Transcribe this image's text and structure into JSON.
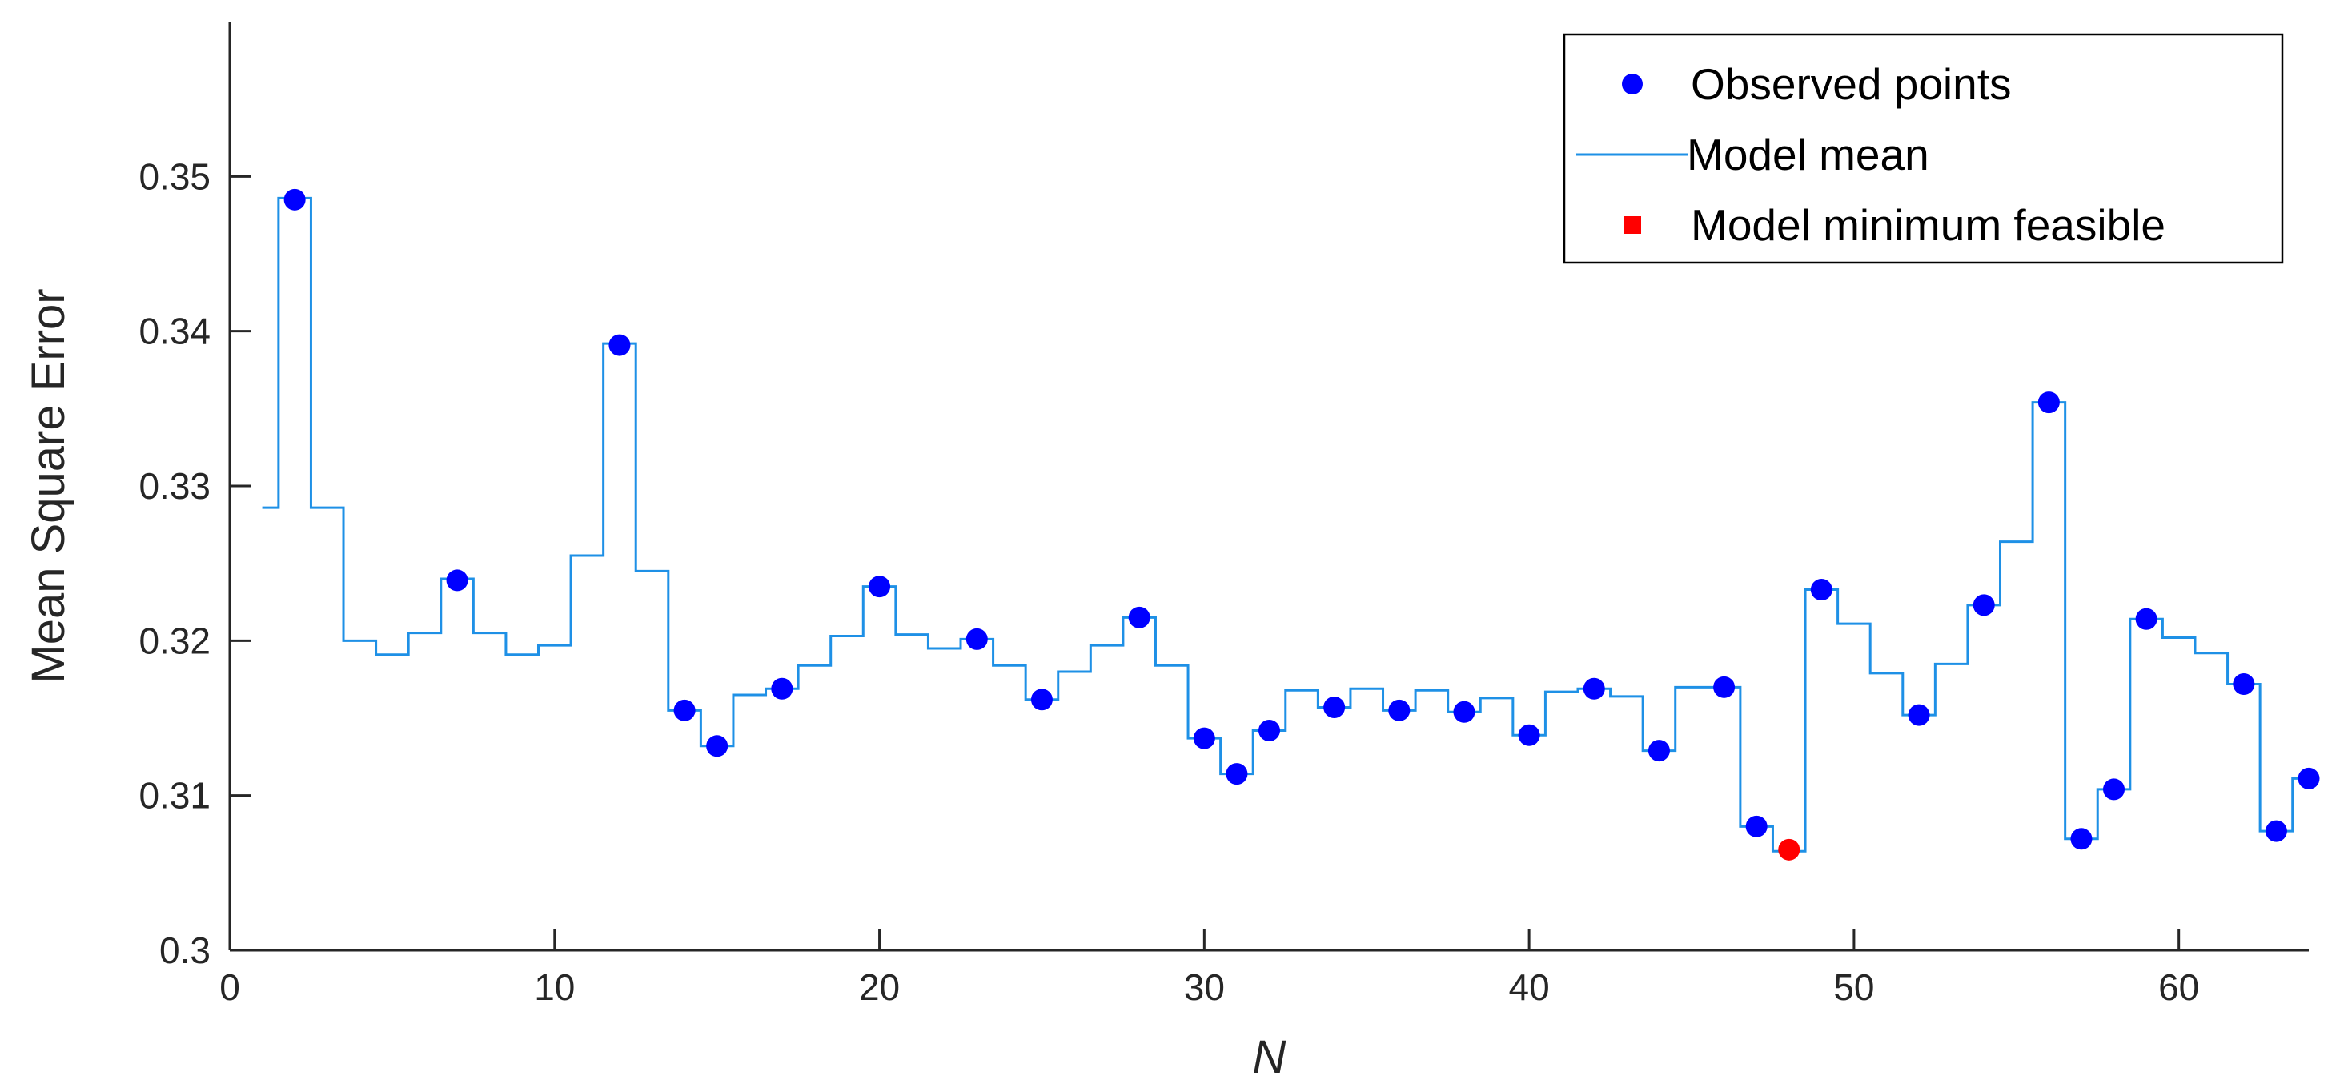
{
  "chart_data": {
    "type": "line",
    "xlabel": "N",
    "ylabel": "Mean Square Error",
    "xlim": [
      0,
      64
    ],
    "ylim": [
      0.3,
      0.36
    ],
    "xticks": [
      0,
      10,
      20,
      30,
      40,
      50,
      60
    ],
    "yticks": [
      0.3,
      0.31,
      0.32,
      0.33,
      0.34,
      0.35
    ],
    "ytick_labels": [
      "0.3",
      "0.31",
      "0.32",
      "0.33",
      "0.34",
      "0.35"
    ],
    "grid": false,
    "legend_position": "top-right",
    "colors": {
      "observed": "#0000ff",
      "model_mean": "#1e90e6",
      "minimum": "#ff0000",
      "axis": "#262626"
    },
    "series": [
      {
        "name": "Observed points",
        "marker": "circle",
        "x": [
          2,
          7,
          12,
          14,
          15,
          17,
          20,
          23,
          25,
          28,
          30,
          31,
          32,
          34,
          36,
          38,
          40,
          42,
          44,
          46,
          47,
          49,
          52,
          54,
          56,
          57,
          58,
          59,
          62,
          63,
          64
        ],
        "y": [
          0.3485,
          0.3239,
          0.3391,
          0.3155,
          0.3132,
          0.3169,
          0.3235,
          0.3201,
          0.3162,
          0.3215,
          0.3137,
          0.3114,
          0.3142,
          0.3157,
          0.3155,
          0.3154,
          0.3139,
          0.3169,
          0.3129,
          0.317,
          0.308,
          0.3233,
          0.3152,
          0.3223,
          0.3354,
          0.3072,
          0.3104,
          0.3214,
          0.3172,
          0.3077,
          0.3111
        ]
      },
      {
        "name": "Model mean",
        "marker": "none",
        "line_style": "stairs",
        "x": [
          1,
          1.5,
          2.5,
          3.5,
          4.5,
          5.5,
          6.5,
          7.5,
          8.5,
          9.5,
          10.5,
          11.5,
          12.5,
          13.5,
          14.5,
          15.5,
          16.5,
          17.5,
          18.5,
          19.5,
          20.5,
          21.5,
          22.5,
          23.5,
          24.5,
          25.5,
          26.5,
          27.5,
          28.5,
          29.5,
          30.5,
          31.5,
          32.5,
          33.5,
          34.5,
          35.5,
          36.5,
          37.5,
          38.5,
          39.5,
          40.5,
          41.5,
          42.5,
          43.5,
          44.5,
          45.5,
          46.5,
          47.5,
          48.5,
          49.5,
          50.5,
          51.5,
          52.5,
          53.5,
          54.5,
          55.5,
          56.5,
          57.5,
          58.5,
          59.5,
          60.5,
          61.5,
          62.5,
          63.5,
          64
        ],
        "y": [
          0.3286,
          0.3486,
          0.3286,
          0.32,
          0.3191,
          0.3205,
          0.324,
          0.3205,
          0.3191,
          0.3197,
          0.3255,
          0.3392,
          0.3245,
          0.3155,
          0.3132,
          0.3165,
          0.3169,
          0.3184,
          0.3203,
          0.3235,
          0.3204,
          0.3195,
          0.3201,
          0.3184,
          0.3162,
          0.318,
          0.3197,
          0.3215,
          0.3184,
          0.3137,
          0.3114,
          0.3142,
          0.3168,
          0.3157,
          0.3169,
          0.3155,
          0.3168,
          0.3154,
          0.3163,
          0.3139,
          0.3167,
          0.3169,
          0.3164,
          0.3129,
          0.317,
          0.317,
          0.308,
          0.3064,
          0.3233,
          0.3211,
          0.3179,
          0.3152,
          0.3185,
          0.3223,
          0.3264,
          0.3354,
          0.3072,
          0.3104,
          0.3214,
          0.3202,
          0.3192,
          0.3172,
          0.3077,
          0.3111,
          0.3111
        ]
      },
      {
        "name": "Model minimum feasible",
        "marker": "square",
        "x": [
          48
        ],
        "y": [
          0.3065
        ]
      }
    ]
  }
}
